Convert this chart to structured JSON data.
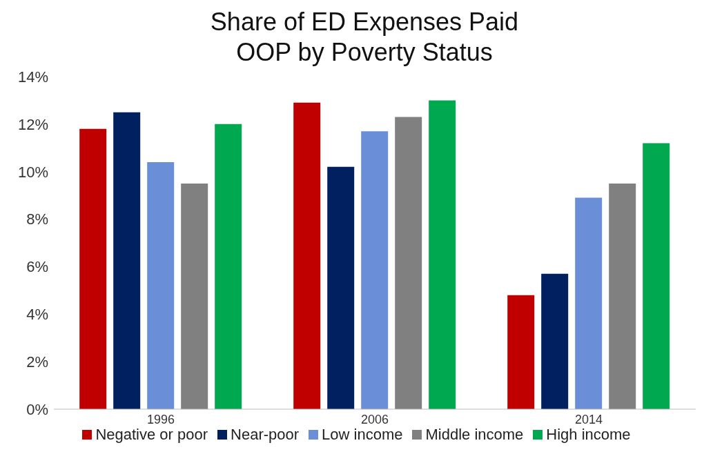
{
  "chart_data": {
    "type": "bar",
    "title": "Share of ED Expenses Paid OOP by Poverty Status",
    "categories": [
      "1996",
      "2006",
      "2014"
    ],
    "series": [
      {
        "name": "Negative or poor",
        "color": "#c00000",
        "values": [
          11.8,
          12.9,
          4.8
        ]
      },
      {
        "name": "Near-poor",
        "color": "#002060",
        "values": [
          12.5,
          10.2,
          5.7
        ]
      },
      {
        "name": "Low income",
        "color": "#6a8fd8",
        "values": [
          10.4,
          11.7,
          8.9
        ]
      },
      {
        "name": "Middle income",
        "color": "#808080",
        "values": [
          9.5,
          12.3,
          9.5
        ]
      },
      {
        "name": "High income",
        "color": "#00a84f",
        "values": [
          12.0,
          13.0,
          11.2
        ]
      }
    ],
    "ylim": [
      0,
      14
    ],
    "yticks": [
      {
        "value": 0,
        "label": "0%"
      },
      {
        "value": 2,
        "label": "2%"
      },
      {
        "value": 4,
        "label": "4%"
      },
      {
        "value": 6,
        "label": "6%"
      },
      {
        "value": 8,
        "label": "8%"
      },
      {
        "value": 10,
        "label": "10%"
      },
      {
        "value": 12,
        "label": "12%"
      },
      {
        "value": 14,
        "label": "14%"
      }
    ],
    "grid": false,
    "legend": "bottom"
  }
}
